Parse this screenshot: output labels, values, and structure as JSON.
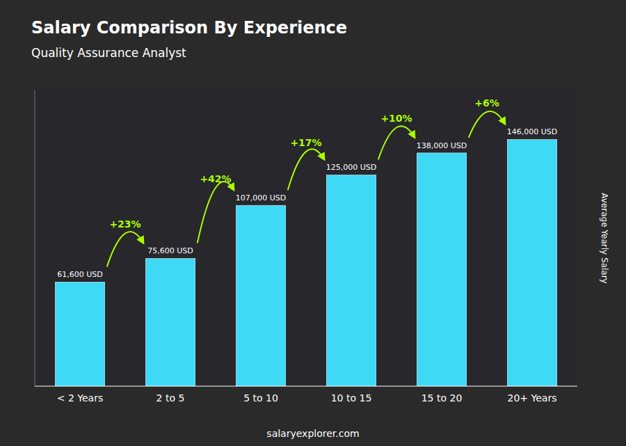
{
  "chart_data": {
    "type": "bar",
    "title": "Salary Comparison By Experience",
    "subtitle": "Quality Assurance Analyst",
    "ylabel": "Average Yearly Salary",
    "source": "salaryexplorer.com",
    "categories": [
      "< 2 Years",
      "2 to 5",
      "5 to 10",
      "10 to 15",
      "15 to 20",
      "20+ Years"
    ],
    "values": [
      61600,
      75600,
      107000,
      125000,
      138000,
      146000
    ],
    "value_labels": [
      "61,600 USD",
      "75,600 USD",
      "107,000 USD",
      "125,000 USD",
      "138,000 USD",
      "146,000 USD"
    ],
    "data_labels": true,
    "annotations": [
      "+23%",
      "+42%",
      "+17%",
      "+10%",
      "+6%"
    ],
    "color": "#3DD9F5",
    "ylim": [
      0,
      175000
    ],
    "tick_labels": "x"
  }
}
